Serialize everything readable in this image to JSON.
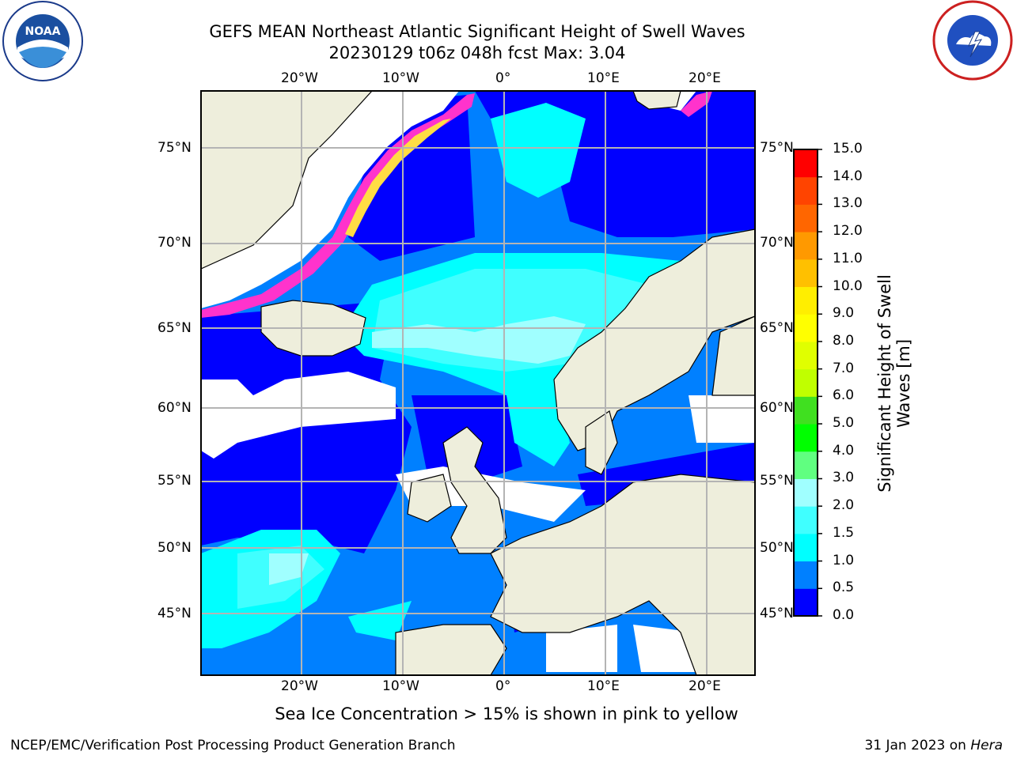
{
  "title": {
    "line1": "GEFS MEAN Northeast Atlantic Significant Height of Swell Waves",
    "line2": "20230129 t06z 048h fcst   Max: 3.04"
  },
  "map": {
    "lon_labels": [
      "20°W",
      "10°W",
      "0°",
      "10°E",
      "20°E"
    ],
    "lat_labels": [
      "75°N",
      "70°N",
      "65°N",
      "60°N",
      "55°N",
      "50°N",
      "45°N"
    ],
    "colors": {
      "land": "#eeeedc",
      "grid": "#b4b4b4",
      "coast": "#000000",
      "ice_pink": "#ff33cc",
      "ice_yellow": "#ffdd44"
    }
  },
  "colorbar": {
    "title_line1": "Significant Height of Swell",
    "title_line2": "Waves [m]",
    "tick_labels": [
      "15.0",
      "14.0",
      "13.0",
      "12.0",
      "11.0",
      "10.0",
      "9.0",
      "8.0",
      "7.0",
      "6.0",
      "5.0",
      "4.0",
      "3.0",
      "2.0",
      "1.5",
      "1.0",
      "0.5",
      "0.0"
    ],
    "bands_bottom_to_top": [
      {
        "range": "0.0-0.5",
        "color": "#0000ff"
      },
      {
        "range": "0.5-1.0",
        "color": "#0080ff"
      },
      {
        "range": "1.0-1.5",
        "color": "#00ffff"
      },
      {
        "range": "1.5-2.0",
        "color": "#40ffff"
      },
      {
        "range": "2.0-3.0",
        "color": "#a0ffff"
      },
      {
        "range": "3.0-4.0",
        "color": "#60ff80"
      },
      {
        "range": "4.0-5.0",
        "color": "#00ff00"
      },
      {
        "range": "5.0-6.0",
        "color": "#40e020"
      },
      {
        "range": "6.0-7.0",
        "color": "#c0ff00"
      },
      {
        "range": "7.0-8.0",
        "color": "#e0ff00"
      },
      {
        "range": "8.0-9.0",
        "color": "#ffff00"
      },
      {
        "range": "9.0-10.0",
        "color": "#ffee00"
      },
      {
        "range": "10.0-11.0",
        "color": "#ffc000"
      },
      {
        "range": "11.0-12.0",
        "color": "#ff9900"
      },
      {
        "range": "12.0-13.0",
        "color": "#ff6600"
      },
      {
        "range": "13.0-14.0",
        "color": "#ff4400"
      },
      {
        "range": "14.0-15.0",
        "color": "#ff0000"
      }
    ]
  },
  "footnote": "Sea Ice Concentration > 15% is shown in pink to yellow",
  "footer": {
    "left": "NCEP/EMC/Verification Post Processing Product Generation Branch",
    "right_prefix": "31 Jan 2023 on ",
    "right_host": "Hera"
  }
}
